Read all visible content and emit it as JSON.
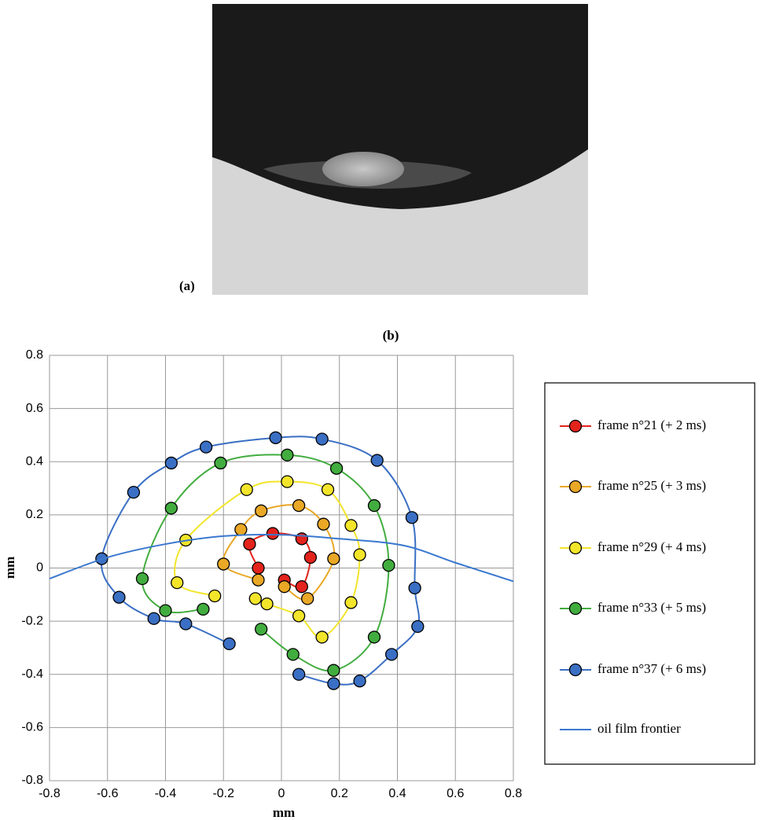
{
  "photo": {
    "label": "(a)"
  },
  "chart_data": {
    "type": "scatter",
    "title": "(b)",
    "xlabel": "mm",
    "ylabel": "mm",
    "xlim": [
      -0.8,
      0.8
    ],
    "ylim": [
      -0.8,
      0.8
    ],
    "xticks": [
      -0.8,
      -0.6,
      -0.4,
      -0.2,
      0,
      0.2,
      0.4,
      0.6,
      0.8
    ],
    "yticks": [
      -0.8,
      -0.6,
      -0.4,
      -0.2,
      0,
      0.2,
      0.4,
      0.6,
      0.8
    ],
    "grid": true,
    "legend": "right",
    "series": [
      {
        "name": "frame n°21 (+ 2 ms)",
        "color": "#e3231c",
        "marker": true,
        "x": [
          -0.08,
          -0.11,
          -0.03,
          0.07,
          0.1,
          0.07,
          0.01
        ],
        "values": [
          0.0,
          0.09,
          0.13,
          0.11,
          0.04,
          -0.07,
          -0.045
        ]
      },
      {
        "name": "frame n°25 (+ 3 ms)",
        "color": "#e9a825",
        "marker": true,
        "x": [
          -0.08,
          -0.2,
          -0.14,
          -0.07,
          0.06,
          0.145,
          0.18,
          0.09,
          0.01
        ],
        "values": [
          -0.045,
          0.015,
          0.145,
          0.215,
          0.235,
          0.165,
          0.035,
          -0.115,
          -0.07
        ]
      },
      {
        "name": "frame n°29 (+ 4 ms)",
        "color": "#f2e52a",
        "marker": true,
        "x": [
          -0.23,
          -0.36,
          -0.33,
          -0.12,
          0.02,
          0.16,
          0.24,
          0.27,
          0.24,
          0.14,
          0.06,
          -0.05,
          -0.09
        ],
        "values": [
          -0.105,
          -0.055,
          0.105,
          0.295,
          0.325,
          0.295,
          0.16,
          0.05,
          -0.13,
          -0.26,
          -0.18,
          -0.135,
          -0.115
        ]
      },
      {
        "name": "frame n°33 (+ 5 ms)",
        "color": "#42ad3f",
        "marker": true,
        "x": [
          -0.27,
          -0.4,
          -0.48,
          -0.38,
          -0.21,
          0.02,
          0.19,
          0.32,
          0.37,
          0.32,
          0.18,
          0.04,
          -0.07
        ],
        "values": [
          -0.155,
          -0.16,
          -0.04,
          0.225,
          0.395,
          0.425,
          0.375,
          0.235,
          0.01,
          -0.26,
          -0.385,
          -0.325,
          -0.23
        ]
      },
      {
        "name": "frame n°37 (+ 6 ms)",
        "color": "#3a6fc4",
        "marker": true,
        "x": [
          -0.18,
          -0.33,
          -0.44,
          -0.56,
          -0.62,
          -0.51,
          -0.38,
          -0.26,
          -0.02,
          0.14,
          0.33,
          0.45,
          0.46,
          0.47,
          0.38,
          0.27,
          0.18,
          0.06
        ],
        "values": [
          -0.285,
          -0.21,
          -0.19,
          -0.11,
          0.035,
          0.285,
          0.395,
          0.455,
          0.49,
          0.485,
          0.405,
          0.19,
          -0.075,
          -0.22,
          -0.325,
          -0.425,
          -0.435,
          -0.4
        ]
      },
      {
        "name": "oil film frontier",
        "color": "#3a78cf",
        "marker": false,
        "x": [
          -0.8,
          -0.6,
          -0.4,
          -0.2,
          0,
          0.2,
          0.42,
          0.6,
          0.8
        ],
        "values": [
          -0.04,
          0.04,
          0.09,
          0.12,
          0.125,
          0.11,
          0.085,
          0.02,
          -0.05
        ]
      }
    ]
  }
}
